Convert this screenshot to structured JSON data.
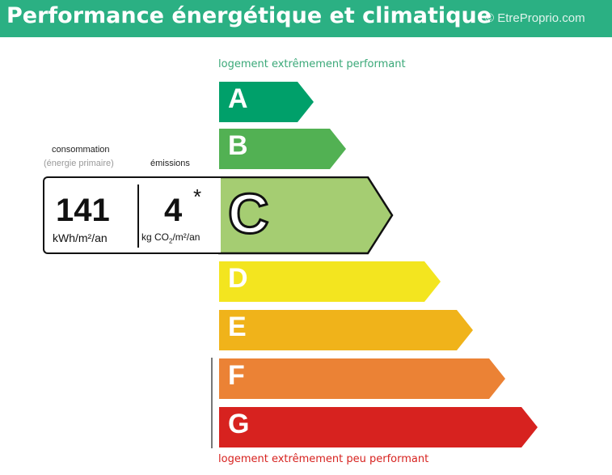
{
  "header": {
    "title": "Performance énergétique et climatique",
    "watermark": "© EtreProprio.com",
    "color": "#2bb083"
  },
  "top_caption": "logement extrêmement performant",
  "bottom_caption": "logement extrêmement peu performant",
  "classes": [
    {
      "letter": "A",
      "color": "#00a06a"
    },
    {
      "letter": "B",
      "color": "#52b153"
    },
    {
      "letter": "C",
      "color": "#a5cd72"
    },
    {
      "letter": "D",
      "color": "#f3e51f"
    },
    {
      "letter": "E",
      "color": "#f0b31a"
    },
    {
      "letter": "F",
      "color": "#eb8235"
    },
    {
      "letter": "G",
      "color": "#d7221f"
    }
  ],
  "current_class": "C",
  "consumption": {
    "label": "consommation",
    "sublabel": "(énergie primaire)",
    "value": "141",
    "unit": "kWh/m²/an"
  },
  "emissions": {
    "label": "émissions",
    "value": "4",
    "asterisk": "*",
    "unit_prefix": "kg CO",
    "unit_sub": "2",
    "unit_suffix": "/m²/an"
  }
}
